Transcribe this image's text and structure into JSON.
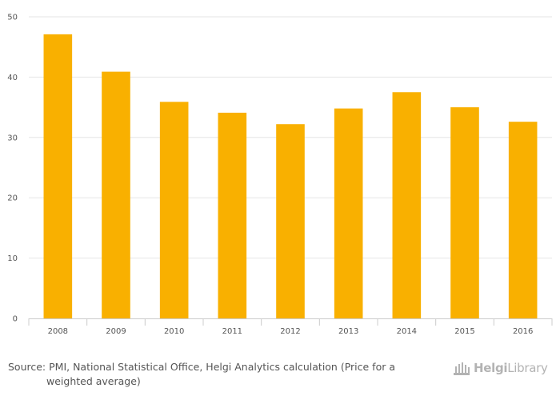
{
  "chart_data": {
    "type": "bar",
    "categories": [
      "2008",
      "2009",
      "2010",
      "2011",
      "2012",
      "2013",
      "2014",
      "2015",
      "2016"
    ],
    "values": [
      47.1,
      40.9,
      35.9,
      34.1,
      32.2,
      34.8,
      37.5,
      35.0,
      32.6
    ],
    "title": "",
    "xlabel": "",
    "ylabel": "",
    "ylim": [
      0,
      50
    ],
    "yticks": [
      0,
      10,
      20,
      30,
      40,
      50
    ],
    "grid": true,
    "legend": "none",
    "bar_color": "#f9b000"
  },
  "footer": {
    "source_line1": "Source: PMI, National Statistical Office, Helgi Analytics calculation (Price for a",
    "source_line2": "weighted average)"
  },
  "logo": {
    "name_bold": "Helgi",
    "name_regular": "Library",
    "color": "#b3b3b3"
  }
}
